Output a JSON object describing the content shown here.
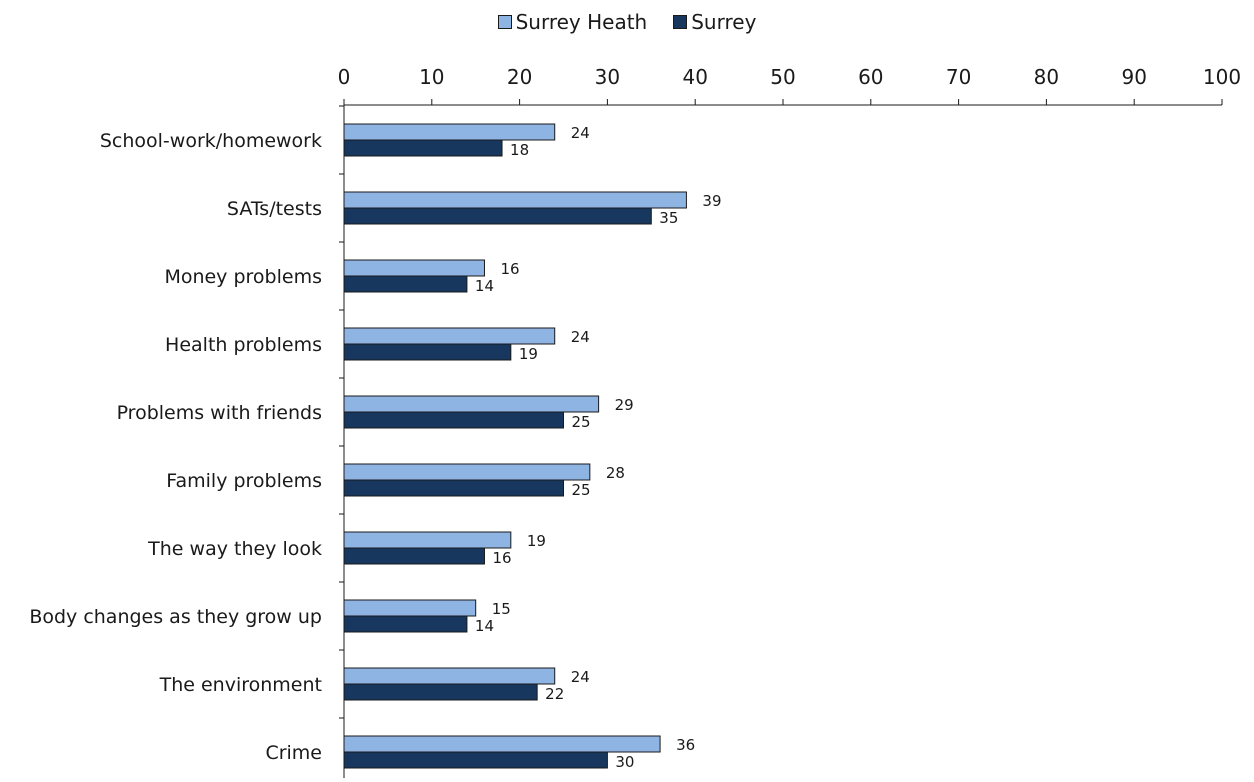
{
  "chart_data": {
    "type": "bar",
    "orientation": "horizontal",
    "categories": [
      "School-work/homework",
      "SATs/tests",
      "Money problems",
      "Health problems",
      "Problems with friends",
      "Family problems",
      "The way they look",
      "Body changes as they grow up",
      "The environment",
      "Crime"
    ],
    "series": [
      {
        "name": "Surrey Heath",
        "color": "#8eb4e3",
        "values": [
          24,
          39,
          16,
          24,
          29,
          28,
          19,
          15,
          24,
          36
        ]
      },
      {
        "name": "Surrey",
        "color": "#17375e",
        "values": [
          18,
          35,
          14,
          19,
          25,
          25,
          16,
          14,
          22,
          30
        ]
      }
    ],
    "xlim": [
      0,
      100
    ],
    "xticks": [
      0,
      10,
      20,
      30,
      40,
      50,
      60,
      70,
      80,
      90,
      100
    ],
    "x_axis_position": "top",
    "legend_position": "top-center",
    "grid": false,
    "data_labels": true
  }
}
